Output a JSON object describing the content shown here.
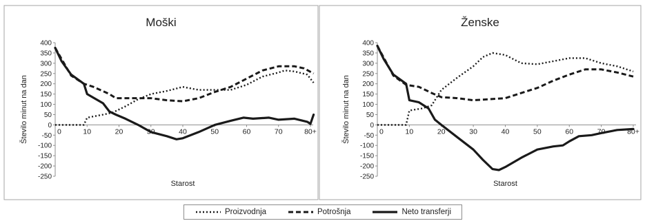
{
  "chart_data": [
    {
      "type": "line",
      "title": "Moški",
      "xlabel": "Starost",
      "ylabel": "Število minut na dan",
      "xlim": [
        0,
        80
      ],
      "ylim": [
        -250,
        400
      ],
      "x_ticks": [
        "0",
        "10",
        "20",
        "30",
        "40",
        "50",
        "60",
        "70",
        "80+"
      ],
      "y_ticks": [
        "400",
        "350",
        "300",
        "250",
        "200",
        "150",
        "100",
        "50",
        "0",
        "-50",
        "-100",
        "-150",
        "-200",
        "-250"
      ],
      "grid": false,
      "series": [
        {
          "name": "Proizvodnja",
          "x": [
            0,
            5,
            9,
            10,
            15,
            18,
            22,
            26,
            30,
            35,
            40,
            45,
            50,
            55,
            60,
            65,
            70,
            72,
            75,
            79,
            81
          ],
          "y": [
            0,
            0,
            0,
            35,
            50,
            60,
            90,
            125,
            150,
            165,
            185,
            170,
            170,
            170,
            195,
            235,
            255,
            265,
            260,
            245,
            205
          ]
        },
        {
          "name": "Potrošnja",
          "x": [
            0,
            5,
            9,
            12,
            17,
            19,
            25,
            30,
            35,
            40,
            45,
            50,
            55,
            60,
            65,
            70,
            75,
            78,
            81
          ],
          "y": [
            375,
            240,
            200,
            185,
            150,
            130,
            130,
            130,
            120,
            115,
            130,
            160,
            185,
            225,
            265,
            285,
            285,
            275,
            250
          ]
        },
        {
          "name": "Neto transferji",
          "x": [
            0,
            2,
            5,
            9,
            10,
            15,
            17,
            19,
            22,
            26,
            30,
            35,
            38,
            40,
            45,
            50,
            55,
            59,
            62,
            67,
            70,
            75,
            79,
            80,
            81
          ],
          "y": [
            375,
            310,
            245,
            200,
            150,
            105,
            65,
            50,
            30,
            0,
            -35,
            -55,
            -70,
            -65,
            -35,
            0,
            20,
            35,
            30,
            35,
            25,
            30,
            15,
            5,
            50
          ]
        }
      ]
    },
    {
      "type": "line",
      "title": "Ženske",
      "xlabel": "Starost",
      "ylabel": "Število minut na dan",
      "xlim": [
        0,
        80
      ],
      "ylim": [
        -250,
        400
      ],
      "x_ticks": [
        "0",
        "10",
        "20",
        "30",
        "40",
        "50",
        "60",
        "70",
        "80+"
      ],
      "y_ticks": [
        "400",
        "350",
        "300",
        "250",
        "200",
        "150",
        "100",
        "50",
        "0",
        "-50",
        "-100",
        "-150",
        "-200",
        "-250"
      ],
      "grid": false,
      "series": [
        {
          "name": "Proizvodnja",
          "x": [
            0,
            5,
            9,
            10,
            14,
            17,
            20,
            25,
            30,
            33,
            36,
            40,
            45,
            50,
            55,
            60,
            65,
            70,
            75,
            80
          ],
          "y": [
            0,
            0,
            0,
            70,
            80,
            95,
            170,
            230,
            285,
            330,
            350,
            340,
            300,
            295,
            310,
            325,
            325,
            300,
            285,
            260
          ]
        },
        {
          "name": "Potrošnja",
          "x": [
            0,
            5,
            9,
            13,
            17,
            20,
            25,
            30,
            35,
            40,
            45,
            50,
            55,
            60,
            65,
            70,
            75,
            80
          ],
          "y": [
            385,
            240,
            195,
            185,
            155,
            135,
            130,
            120,
            125,
            130,
            155,
            180,
            215,
            245,
            270,
            270,
            255,
            235
          ]
        },
        {
          "name": "Neto transferji",
          "x": [
            0,
            2,
            5,
            9,
            10,
            13,
            16,
            18,
            20,
            25,
            30,
            33,
            36,
            38,
            40,
            45,
            50,
            55,
            58,
            60,
            63,
            67,
            70,
            75,
            80
          ],
          "y": [
            385,
            320,
            245,
            200,
            120,
            110,
            80,
            25,
            0,
            -60,
            -120,
            -170,
            -215,
            -220,
            -205,
            -160,
            -120,
            -105,
            -100,
            -80,
            -55,
            -50,
            -40,
            -25,
            -20
          ]
        }
      ]
    }
  ],
  "legend": {
    "placement": "bottom-center",
    "items": [
      "Proizvodnja",
      "Potrošnja",
      "Neto transferji"
    ]
  }
}
